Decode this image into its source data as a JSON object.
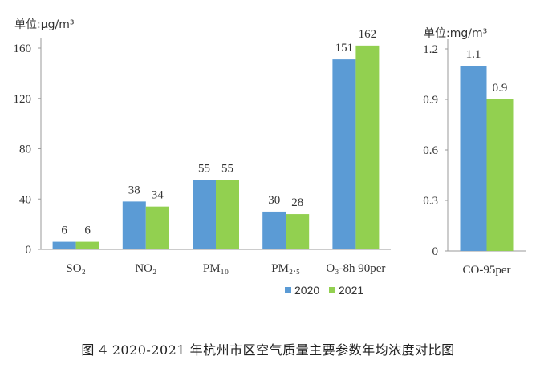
{
  "caption": "图 4   2020-2021 年杭州市区空气质量主要参数年均浓度对比图",
  "chart_data": [
    {
      "type": "bar",
      "unit_label": "单位:μg/m³",
      "categories": [
        "SO₂",
        "NO₂",
        "PM₁₀",
        "PM₂.₅",
        "O₃-8h 90per"
      ],
      "series": [
        {
          "name": "2020",
          "color": "#5b9bd5",
          "values": [
            6,
            38,
            55,
            30,
            151
          ]
        },
        {
          "name": "2021",
          "color": "#92d050",
          "values": [
            6,
            34,
            55,
            28,
            162
          ]
        }
      ],
      "data_labels": [
        [
          "6",
          "38",
          "55",
          "30",
          "151"
        ],
        [
          "6",
          "34",
          "55",
          "28",
          "162"
        ]
      ],
      "yticks": [
        0,
        40,
        80,
        120,
        160
      ],
      "ytick_labels": [
        "0",
        "40",
        "80",
        "120",
        "160"
      ],
      "ylim": [
        0,
        160
      ]
    },
    {
      "type": "bar",
      "unit_label": "单位:mg/m³",
      "categories": [
        "CO-95per"
      ],
      "series": [
        {
          "name": "2020",
          "color": "#5b9bd5",
          "values": [
            1.1
          ]
        },
        {
          "name": "2021",
          "color": "#92d050",
          "values": [
            0.9
          ]
        }
      ],
      "data_labels": [
        [
          "1.1"
        ],
        [
          "0.9"
        ]
      ],
      "yticks": [
        0,
        0.3,
        0.6,
        0.9,
        1.2
      ],
      "ytick_labels": [
        "0",
        "0.3",
        "0.6",
        "0.9",
        "1.2"
      ],
      "ylim": [
        0,
        1.2
      ]
    }
  ],
  "legend": [
    {
      "label": "2020",
      "color": "#5b9bd5"
    },
    {
      "label": "2021",
      "color": "#92d050"
    }
  ]
}
